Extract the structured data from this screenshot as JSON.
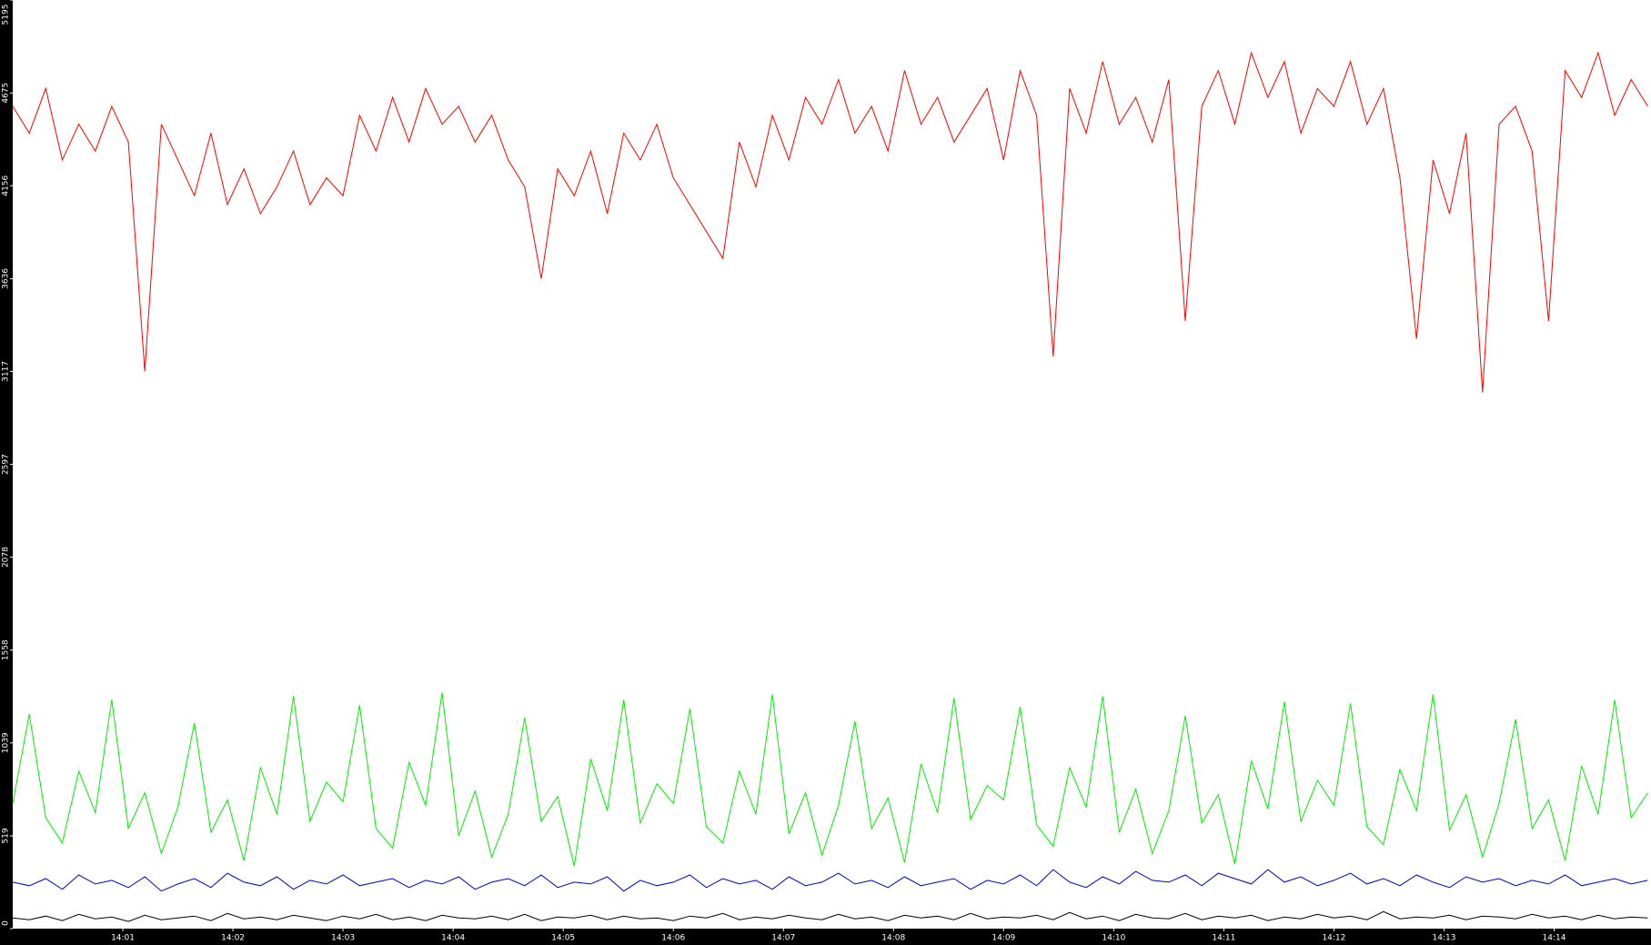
{
  "chart_data": {
    "type": "line",
    "x": [
      0,
      0.15,
      0.3,
      0.45,
      0.6,
      0.75,
      0.9,
      1.05,
      1.2,
      1.35,
      1.5,
      1.65,
      1.8,
      1.95,
      2.1,
      2.25,
      2.4,
      2.55,
      2.7,
      2.85,
      3,
      3.15,
      3.3,
      3.45,
      3.6,
      3.75,
      3.9,
      4.05,
      4.2,
      4.35,
      4.5,
      4.65,
      4.8,
      4.95,
      5.1,
      5.25,
      5.4,
      5.55,
      5.7,
      5.85,
      6,
      6.15,
      6.3,
      6.45,
      6.6,
      6.75,
      6.9,
      7.05,
      7.2,
      7.35,
      7.5,
      7.65,
      7.8,
      7.95,
      8.1,
      8.25,
      8.4,
      8.55,
      8.7,
      8.85,
      9,
      9.15,
      9.3,
      9.45,
      9.6,
      9.75,
      9.9,
      10.05,
      10.2,
      10.35,
      10.5,
      10.65,
      10.8,
      10.95,
      11.1,
      11.25,
      11.4,
      11.55,
      11.7,
      11.85,
      12,
      12.15,
      12.3,
      12.45,
      12.6,
      12.75,
      12.9,
      13.05,
      13.2,
      13.35,
      13.5,
      13.65,
      13.8,
      13.95,
      14.1,
      14.25,
      14.4,
      14.55,
      14.7,
      14.85
    ],
    "series": [
      {
        "color": "#ff0000",
        "values": [
          4600,
          4450,
          4700,
          4300,
          4500,
          4350,
          4600,
          4400,
          3117,
          4500,
          4300,
          4100,
          4450,
          4050,
          4250,
          4000,
          4150,
          4350,
          4050,
          4200,
          4100,
          4550,
          4350,
          4650,
          4400,
          4700,
          4500,
          4600,
          4400,
          4550,
          4300,
          4150,
          3636,
          4250,
          4100,
          4350,
          4000,
          4450,
          4300,
          4500,
          4200,
          4050,
          3900,
          3750,
          4400,
          4150,
          4550,
          4300,
          4650,
          4500,
          4750,
          4450,
          4600,
          4350,
          4800,
          4500,
          4650,
          4400,
          4550,
          4700,
          4300,
          4800,
          4550,
          3200,
          4700,
          4450,
          4850,
          4500,
          4650,
          4400,
          4750,
          3400,
          4600,
          4800,
          4500,
          4900,
          4650,
          4850,
          4450,
          4700,
          4600,
          4850,
          4500,
          4700,
          4200,
          3300,
          4300,
          4000,
          4450,
          3000,
          4500,
          4600,
          4350,
          3400,
          4800,
          4650,
          4900,
          4550,
          4750,
          4600
        ]
      },
      {
        "color": "#00ee00",
        "values": [
          700,
          1200,
          620,
          480,
          880,
          650,
          1280,
          560,
          760,
          420,
          680,
          1150,
          540,
          720,
          380,
          900,
          640,
          1300,
          600,
          820,
          710,
          1250,
          560,
          450,
          930,
          690,
          1320,
          520,
          770,
          400,
          640,
          1180,
          600,
          740,
          350,
          950,
          660,
          1280,
          590,
          810,
          700,
          1230,
          570,
          480,
          880,
          640,
          1310,
          530,
          760,
          410,
          690,
          1160,
          560,
          730,
          370,
          920,
          650,
          1290,
          610,
          800,
          720,
          1240,
          580,
          460,
          900,
          680,
          1300,
          540,
          780,
          420,
          660,
          1190,
          590,
          750,
          360,
          940,
          670,
          1270,
          600,
          830,
          690,
          1260,
          570,
          470,
          890,
          660,
          1310,
          550,
          750,
          400,
          700,
          1170,
          560,
          720,
          380,
          910,
          640,
          1280,
          620,
          760
        ]
      },
      {
        "color": "#0000dd",
        "values": [
          260,
          240,
          280,
          220,
          300,
          250,
          270,
          230,
          290,
          210,
          250,
          280,
          230,
          310,
          260,
          240,
          290,
          220,
          270,
          250,
          300,
          240,
          260,
          280,
          230,
          270,
          250,
          290,
          220,
          260,
          280,
          240,
          300,
          230,
          260,
          250,
          290,
          210,
          270,
          240,
          260,
          300,
          230,
          280,
          250,
          270,
          220,
          290,
          240,
          260,
          310,
          250,
          270,
          230,
          290,
          240,
          260,
          280,
          220,
          270,
          250,
          300,
          240,
          330,
          260,
          230,
          290,
          250,
          320,
          270,
          260,
          300,
          240,
          310,
          280,
          250,
          330,
          260,
          290,
          240,
          270,
          310,
          250,
          280,
          240,
          300,
          260,
          230,
          290,
          260,
          280,
          240,
          270,
          250,
          300,
          240,
          260,
          280,
          250,
          270
        ]
      },
      {
        "color": "#000000",
        "values": [
          60,
          50,
          70,
          45,
          80,
          55,
          65,
          40,
          75,
          50,
          60,
          70,
          45,
          85,
          55,
          65,
          50,
          75,
          60,
          45,
          70,
          55,
          80,
          50,
          65,
          45,
          75,
          60,
          55,
          70,
          50,
          80,
          45,
          65,
          60,
          75,
          50,
          70,
          55,
          60,
          45,
          70,
          60,
          85,
          50,
          65,
          55,
          75,
          60,
          50,
          80,
          55,
          65,
          45,
          75,
          60,
          70,
          50,
          85,
          55,
          65,
          60,
          75,
          50,
          90,
          55,
          70,
          45,
          80,
          60,
          55,
          85,
          50,
          70,
          60,
          75,
          45,
          65,
          55,
          80,
          60,
          70,
          50,
          95,
          55,
          65,
          60,
          75,
          50,
          70,
          65,
          55,
          80,
          60,
          70,
          50,
          75,
          55,
          65,
          60
        ]
      }
    ],
    "xlim": [
      0,
      14.88
    ],
    "xticks": [
      {
        "value": 1,
        "label": "14:01"
      },
      {
        "value": 2,
        "label": "14:02"
      },
      {
        "value": 3,
        "label": "14:03"
      },
      {
        "value": 4,
        "label": "14:04"
      },
      {
        "value": 5,
        "label": "14:05"
      },
      {
        "value": 6,
        "label": "14:06"
      },
      {
        "value": 7,
        "label": "14:07"
      },
      {
        "value": 8,
        "label": "14:08"
      },
      {
        "value": 9,
        "label": "14:09"
      },
      {
        "value": 10,
        "label": "14:10"
      },
      {
        "value": 11,
        "label": "14:11"
      },
      {
        "value": 12,
        "label": "14:12"
      },
      {
        "value": 13,
        "label": "14:13"
      },
      {
        "value": 14,
        "label": "14:14"
      }
    ],
    "ylim": [
      0,
      5195
    ],
    "yticks": [
      0,
      519,
      1039,
      1558,
      2078,
      2597,
      3117,
      3636,
      4156,
      4675,
      5195
    ]
  }
}
